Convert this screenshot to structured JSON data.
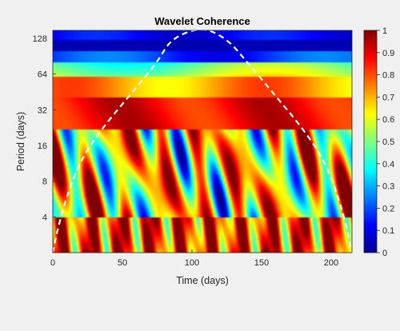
{
  "chart_data": {
    "type": "heatmap",
    "title": "Wavelet Coherence",
    "xlabel": "Time (days)",
    "ylabel": "Period (days)",
    "xlim": [
      0,
      215
    ],
    "ylim": [
      2,
      128
    ],
    "y_scale": "log2",
    "x_ticks": [
      0,
      50,
      100,
      150,
      200
    ],
    "x_tick_labels": [
      "0",
      "50",
      "100",
      "150",
      "200"
    ],
    "y_ticks": [
      4,
      8,
      16,
      32,
      64,
      128
    ],
    "y_tick_labels": [
      "4",
      "8",
      "16",
      "32",
      "64",
      "128"
    ],
    "colorbar": {
      "colormap": "jet",
      "range": [
        0,
        1
      ],
      "ticks": [
        0,
        0.1,
        0.2,
        0.3,
        0.4,
        0.5,
        0.6,
        0.7,
        0.8,
        0.9,
        1
      ],
      "tick_labels": [
        "0",
        "0.1",
        "0.2",
        "0.3",
        "0.4",
        "0.5",
        "0.6",
        "0.7",
        "0.8",
        "0.9",
        "1"
      ]
    },
    "cone_of_influence": {
      "style": "white dashed line",
      "x": [
        0,
        3,
        10,
        20,
        35,
        55,
        75,
        85,
        107,
        125,
        140,
        160,
        180,
        195,
        205,
        212,
        215
      ],
      "period": [
        2,
        3,
        6,
        12,
        22,
        42,
        80,
        128,
        160,
        128,
        80,
        42,
        22,
        12,
        6,
        3,
        2
      ]
    },
    "bands": {
      "description": "coherence by period band (approximate)",
      "period_128": 0.15,
      "period_96": 0.08,
      "period_70": 0.3,
      "period_48": 0.55,
      "period_32": 0.8,
      "period_20": 0.9,
      "period_4_to_14": "mixed 0.1 to 1",
      "period_2_to_4": "mostly 0.8 to 1 with narrow low streaks"
    },
    "grid": false
  }
}
